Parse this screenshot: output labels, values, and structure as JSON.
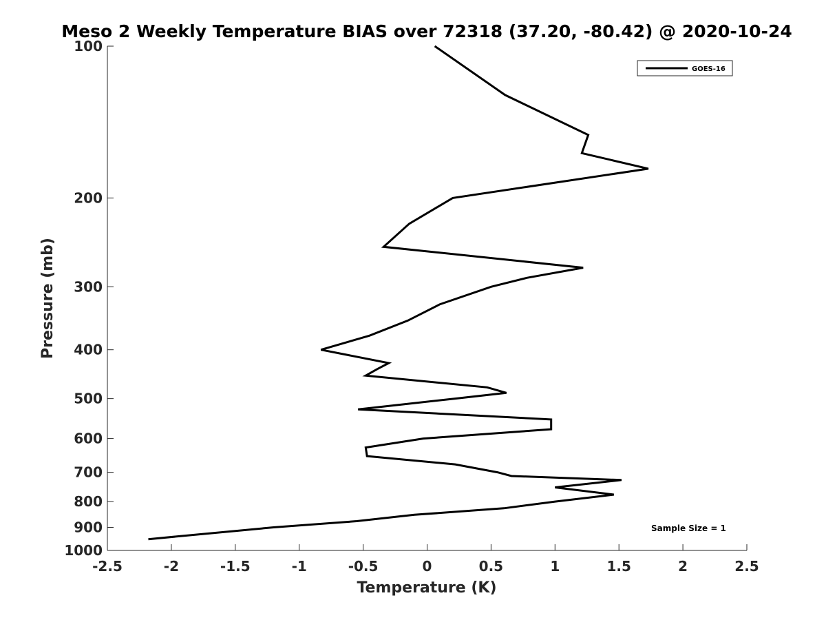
{
  "chart_data": {
    "type": "line",
    "title": "Meso 2 Weekly Temperature BIAS over 72318 (37.20, -80.42) @ 2020-10-24",
    "xlabel": "Temperature (K)",
    "ylabel": "Pressure (mb)",
    "xlim": [
      -2.5,
      2.5
    ],
    "ylim": [
      100,
      1000
    ],
    "y_scale": "log",
    "y_reversed": true,
    "grid": false,
    "legend_position": "top-right",
    "x_ticks": [
      "-2.5",
      "-2",
      "-1.5",
      "-1",
      "-0.5",
      "0",
      "0.5",
      "1",
      "1.5",
      "2",
      "2.5"
    ],
    "y_ticks": [
      "100",
      "200",
      "300",
      "400",
      "500",
      "600",
      "700",
      "800",
      "900",
      "1000"
    ],
    "series": [
      {
        "name": "GOES-16",
        "color": "#000000",
        "points": [
          {
            "t": 0.06,
            "p": 100
          },
          {
            "t": 0.61,
            "p": 125
          },
          {
            "t": 1.26,
            "p": 150
          },
          {
            "t": 1.21,
            "p": 163
          },
          {
            "t": 1.73,
            "p": 175
          },
          {
            "t": 0.2,
            "p": 200
          },
          {
            "t": -0.14,
            "p": 225
          },
          {
            "t": -0.34,
            "p": 250
          },
          {
            "t": 1.22,
            "p": 275
          },
          {
            "t": 0.78,
            "p": 288
          },
          {
            "t": 0.5,
            "p": 300
          },
          {
            "t": 0.1,
            "p": 325
          },
          {
            "t": -0.15,
            "p": 350
          },
          {
            "t": -0.45,
            "p": 375
          },
          {
            "t": -0.83,
            "p": 400
          },
          {
            "t": -0.3,
            "p": 425
          },
          {
            "t": -0.39,
            "p": 437
          },
          {
            "t": -0.48,
            "p": 450
          },
          {
            "t": 0.47,
            "p": 475
          },
          {
            "t": 0.62,
            "p": 487
          },
          {
            "t": 0.22,
            "p": 500
          },
          {
            "t": -0.54,
            "p": 525
          },
          {
            "t": 0.97,
            "p": 550
          },
          {
            "t": 0.97,
            "p": 575
          },
          {
            "t": -0.03,
            "p": 600
          },
          {
            "t": -0.48,
            "p": 625
          },
          {
            "t": -0.47,
            "p": 650
          },
          {
            "t": 0.22,
            "p": 675
          },
          {
            "t": 0.55,
            "p": 700
          },
          {
            "t": 0.66,
            "p": 712
          },
          {
            "t": 1.52,
            "p": 725
          },
          {
            "t": 1.0,
            "p": 750
          },
          {
            "t": 1.46,
            "p": 775
          },
          {
            "t": 1.0,
            "p": 800
          },
          {
            "t": 0.6,
            "p": 825
          },
          {
            "t": -0.1,
            "p": 850
          },
          {
            "t": -0.55,
            "p": 875
          },
          {
            "t": -1.2,
            "p": 900
          },
          {
            "t": -1.7,
            "p": 925
          },
          {
            "t": -2.18,
            "p": 950
          }
        ]
      }
    ],
    "annotations": [
      "Sample Size = 1"
    ]
  }
}
